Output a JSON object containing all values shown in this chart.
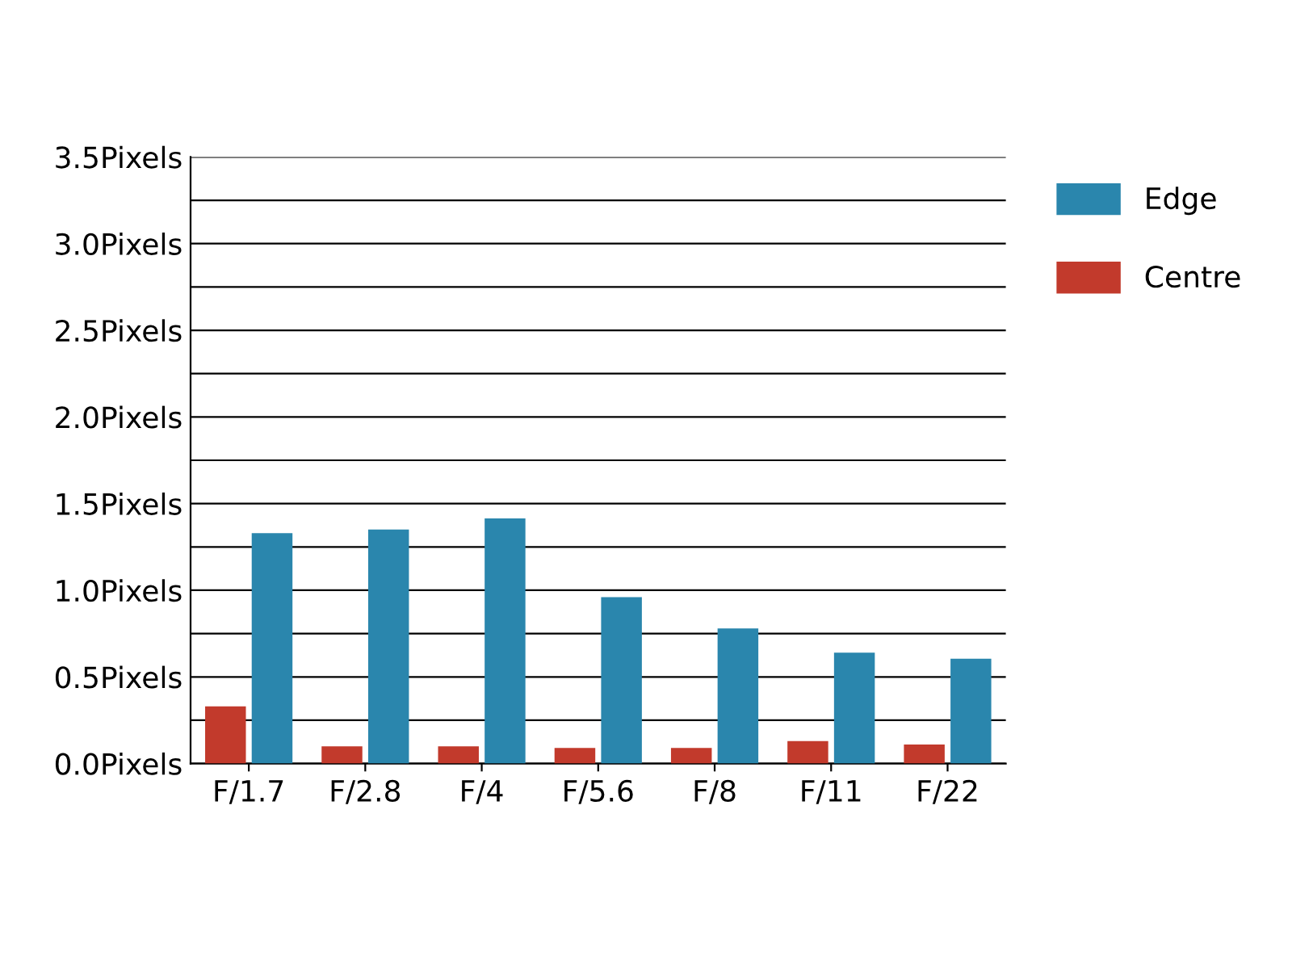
{
  "chart_data": {
    "type": "bar",
    "categories": [
      "F/1.7",
      "F/2.8",
      "F/4",
      "F/5.6",
      "F/8",
      "F/11",
      "F/22"
    ],
    "series": [
      {
        "name": "Centre",
        "color": "#c23a2c",
        "values": [
          0.33,
          0.1,
          0.1,
          0.09,
          0.09,
          0.13,
          0.11
        ]
      },
      {
        "name": "Edge",
        "color": "#2a86ad",
        "values": [
          1.33,
          1.35,
          1.415,
          0.96,
          0.78,
          0.64,
          0.605
        ]
      }
    ],
    "ylim": [
      0,
      3.5
    ],
    "yticks": [
      {
        "value": 0,
        "label": "0.0Pixels"
      },
      {
        "value": 0.25,
        "label": null
      },
      {
        "value": 0.5,
        "label": "0.5Pixels"
      },
      {
        "value": 0.75,
        "label": null
      },
      {
        "value": 1,
        "label": "1.0Pixels"
      },
      {
        "value": 1.25,
        "label": null
      },
      {
        "value": 1.5,
        "label": "1.5Pixels"
      },
      {
        "value": 1.75,
        "label": null
      },
      {
        "value": 2,
        "label": "2.0Pixels"
      },
      {
        "value": 2.25,
        "label": null
      },
      {
        "value": 2.5,
        "label": "2.5Pixels"
      },
      {
        "value": 2.75,
        "label": null
      },
      {
        "value": 3,
        "label": "3.0Pixels"
      },
      {
        "value": 3.25,
        "label": null
      },
      {
        "value": 3.5,
        "label": "3.5Pixels"
      }
    ],
    "grid": "y",
    "legend": "top right"
  }
}
